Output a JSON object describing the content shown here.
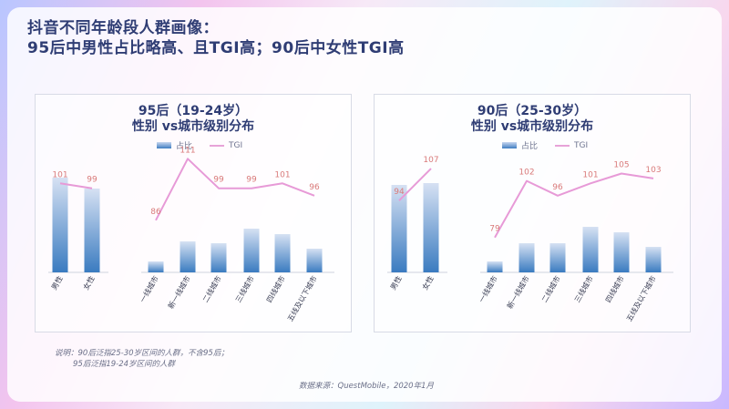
{
  "title_line1": "抖音不同年龄段人群画像：",
  "title_line2": "95后中男性占比略高、且TGI高；90后中女性TGI高",
  "legend": {
    "bar": "占比",
    "line": "TGI"
  },
  "note_line1": "说明：90后泛指25-30岁区间的人群，不含95后；",
  "note_line2": "95后泛指19-24岁区间的人群",
  "source": "数据来源：QuestMobile，2020年1月",
  "chart_data": [
    {
      "type": "bar",
      "title": "95后（19-24岁）",
      "subtitle": "性别 vs城市级别分布",
      "categories": [
        "男性",
        "女性",
        "一线城市",
        "新一线城市",
        "二线城市",
        "三线城市",
        "四线城市",
        "五线及以下城市"
      ],
      "series": [
        {
          "name": "占比",
          "values": [
            52,
            46,
            6,
            17,
            16,
            24,
            21,
            13
          ]
        },
        {
          "name": "TGI",
          "values": [
            101,
            99,
            86,
            111,
            99,
            99,
            101,
            96
          ]
        }
      ],
      "tgi_labels": [
        "101",
        "99",
        "86",
        "111",
        "99",
        "99",
        "101",
        "96"
      ]
    },
    {
      "type": "bar",
      "title": "90后（25-30岁）",
      "subtitle": "性别 vs城市级别分布",
      "categories": [
        "男性",
        "女性",
        "一线城市",
        "新一线城市",
        "二线城市",
        "三线城市",
        "四线城市",
        "五线及以下城市"
      ],
      "series": [
        {
          "name": "占比",
          "values": [
            48,
            49,
            6,
            16,
            16,
            25,
            22,
            14
          ]
        },
        {
          "name": "TGI",
          "values": [
            94,
            107,
            79,
            102,
            96,
            101,
            105,
            103
          ]
        }
      ],
      "tgi_labels": [
        "94",
        "107",
        "79",
        "102",
        "96",
        "101",
        "105",
        "103"
      ]
    }
  ]
}
